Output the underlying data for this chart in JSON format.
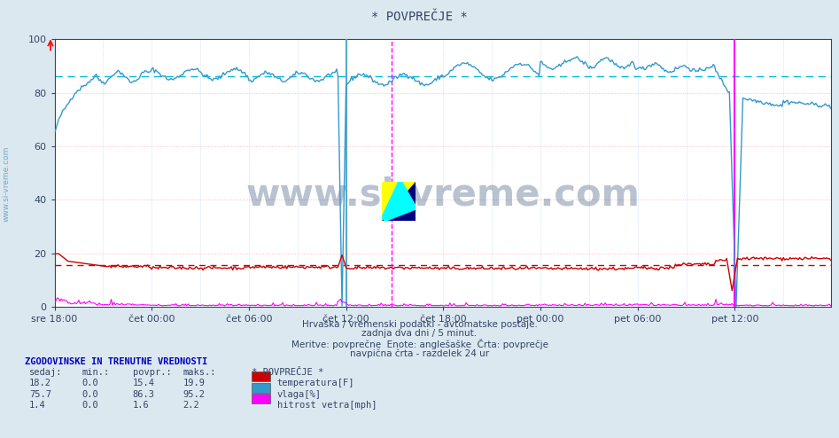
{
  "title": "* POVPREČJE *",
  "bg_color": "#dce8f0",
  "plot_bg_color": "#ffffff",
  "ylim": [
    0,
    100
  ],
  "yticks": [
    0,
    20,
    40,
    60,
    80,
    100
  ],
  "xlabel_ticks": [
    "sre 18:00",
    "čet 00:00",
    "čet 06:00",
    "čet 12:00",
    "čet 18:00",
    "pet 00:00",
    "pet 06:00",
    "pet 12:00"
  ],
  "n_points": 576,
  "temp_color": "#cc0000",
  "humidity_color": "#3399cc",
  "wind_color": "#ff00ff",
  "temp_avg": 15.4,
  "humidity_avg": 86.3,
  "wind_avg": 1.6,
  "temp_min": 0.0,
  "temp_max": 19.9,
  "temp_current": 18.2,
  "humidity_min": 0.0,
  "humidity_max": 95.2,
  "humidity_current": 75.7,
  "wind_min": 0.0,
  "wind_max": 2.2,
  "wind_current": 1.4,
  "subtitle1": "Hrvaška / vremenski podatki - avtomatske postaje.",
  "subtitle2": "zadnja dva dni / 5 minut.",
  "subtitle3": "Meritve: povprečne  Enote: anglešaške  Črta: povprečje",
  "subtitle4": "navpična črta - razdelek 24 ur",
  "legend_title": "* POVPREČJE *",
  "legend_label1": "temperatura[F]",
  "legend_label2": "vlaga[%]",
  "legend_label3": "hitrost vetra[mph]",
  "table_header": "ZGODOVINSKE IN TRENUTNE VREDNOSTI",
  "col_headers": [
    "sedaj:",
    "min.:",
    "povpr.:",
    "maks.:"
  ],
  "watermark": "www.si-vreme.com",
  "watermark_color": "#1a3566",
  "sidebar_text": "www.si-vreme.com",
  "sidebar_color": "#5599bb"
}
